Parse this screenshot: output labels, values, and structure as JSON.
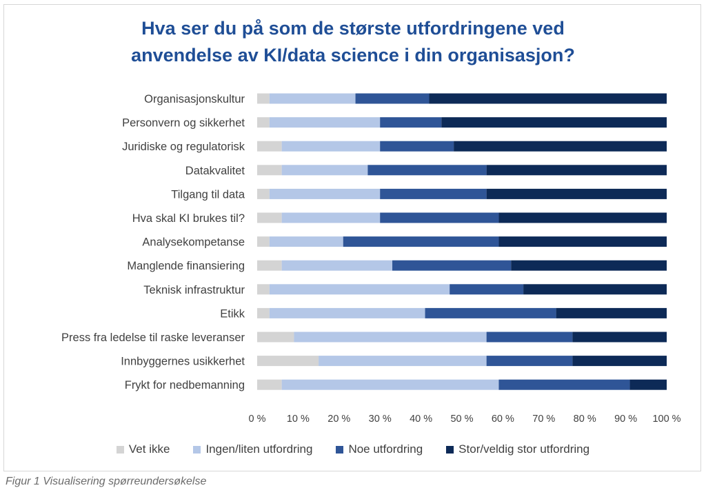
{
  "chart_data": {
    "type": "bar",
    "orientation": "horizontal",
    "stacked": "100%",
    "title": "Hva ser du på som de største utfordringene ved anvendelse av KI/data science i din organisasjon?",
    "title_lines": [
      "Hva ser du på som de største utfordringene ved",
      "anvendelse av KI/data science i din organisasjon?"
    ],
    "categories": [
      "Organisasjonskultur",
      "Personvern og sikkerhet",
      "Juridiske og regulatorisk",
      "Datakvalitet",
      "Tilgang til data",
      "Hva skal KI brukes til?",
      "Analysekompetanse",
      "Manglende finansiering",
      "Teknisk infrastruktur",
      "Etikk",
      "Press fra ledelse til raske leveranser",
      "Innbyggernes usikkerhet",
      "Frykt for nedbemanning"
    ],
    "series": [
      {
        "name": "Vet ikke",
        "color": "#d4d4d4",
        "values": [
          3,
          3,
          6,
          6,
          3,
          6,
          3,
          6,
          3,
          3,
          9,
          15,
          6
        ]
      },
      {
        "name": "Ingen/liten utfordring",
        "color": "#b4c7e7",
        "values": [
          21,
          27,
          24,
          21,
          27,
          24,
          18,
          27,
          44,
          38,
          47,
          41,
          53
        ]
      },
      {
        "name": "Noe utfordring",
        "color": "#2f5597",
        "values": [
          18,
          15,
          18,
          29,
          26,
          29,
          38,
          29,
          18,
          32,
          21,
          21,
          32
        ]
      },
      {
        "name": "Stor/veldig stor utfordring",
        "color": "#0d2a57",
        "values": [
          58,
          55,
          52,
          44,
          44,
          41,
          41,
          38,
          35,
          27,
          23,
          23,
          9
        ]
      }
    ],
    "x_ticks": [
      "0 %",
      "10 %",
      "20 %",
      "30 %",
      "40 %",
      "50 %",
      "60 %",
      "70 %",
      "80 %",
      "90 %",
      "100 %"
    ],
    "xlim": [
      0,
      100
    ],
    "grid": false,
    "legend_position": "bottom"
  },
  "caption": "Figur 1 Visualisering spørreundersøkelse"
}
